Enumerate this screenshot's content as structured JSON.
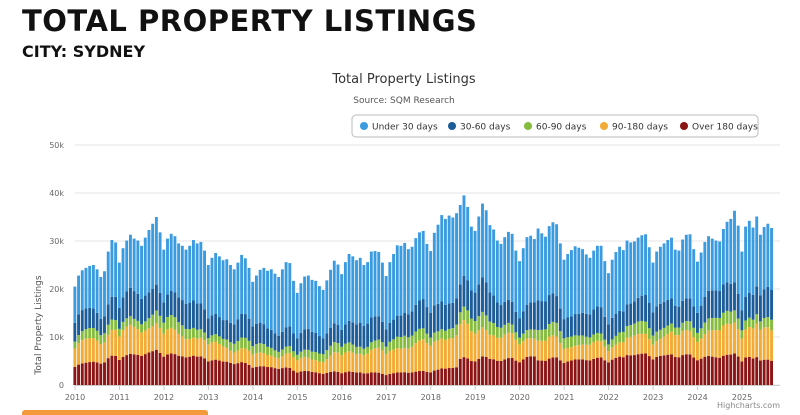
{
  "page": {
    "title": "TOTAL PROPERTY LISTINGS",
    "subtitle": "CITY: SYDNEY"
  },
  "chart_data": {
    "type": "bar",
    "stacked": true,
    "title": "Total Property Listings",
    "subtitle": "Source: SQM Research",
    "ylabel": "Total Property Listings",
    "xlabel": "",
    "ylim": [
      0,
      50000
    ],
    "y_ticks": [
      0,
      10000,
      20000,
      30000,
      40000,
      50000
    ],
    "y_tick_labels": [
      "0",
      "10k",
      "20k",
      "30k",
      "40k",
      "50k"
    ],
    "x_tick_labels": [
      "2010",
      "2011",
      "2012",
      "2013",
      "2014",
      "2015",
      "2016",
      "2017",
      "2018",
      "2019",
      "2020",
      "2021",
      "2022",
      "2023",
      "2024",
      "2025"
    ],
    "x_start_year": 2010,
    "x_end_year": 2025.75,
    "legend_position": "top-right",
    "grid": true,
    "credits": "Highcharts.com",
    "series": [
      {
        "name": "Under 30 days",
        "color": "#3b9be0"
      },
      {
        "name": "30-60 days",
        "color": "#1c5d99"
      },
      {
        "name": "60-90 days",
        "color": "#86bc3e"
      },
      {
        "name": "90-180 days",
        "color": "#f2ab35"
      },
      {
        "name": "Over 180 days",
        "color": "#8b1414"
      }
    ],
    "months_per_year": 12,
    "monthly_totals": [
      20500,
      22800,
      23900,
      24400,
      24800,
      25000,
      24100,
      22500,
      23700,
      27800,
      30200,
      29700,
      25500,
      28500,
      30100,
      31300,
      30500,
      30100,
      29000,
      30700,
      32300,
      33600,
      35000,
      31800,
      28200,
      30500,
      31500,
      31000,
      29500,
      29000,
      28200,
      29000,
      30200,
      29500,
      29800,
      28000,
      25000,
      26500,
      27500,
      26800,
      26000,
      26200,
      25000,
      24100,
      25500,
      27100,
      26400,
      24400,
      21500,
      22800,
      24000,
      24400,
      23800,
      24100,
      23200,
      22500,
      24100,
      25600,
      25400,
      21700,
      19200,
      21200,
      22600,
      22800,
      21900,
      21700,
      20600,
      19800,
      21800,
      24000,
      25900,
      25100,
      23100,
      25600,
      27300,
      26800,
      26000,
      26500,
      25000,
      25600,
      27800,
      27900,
      27700,
      25500,
      22700,
      25600,
      27300,
      29100,
      29000,
      29600,
      28300,
      28800,
      30600,
      31800,
      32100,
      29400,
      27900,
      31700,
      33400,
      35400,
      34600,
      35300,
      34900,
      35800,
      37500,
      39500,
      37100,
      33000,
      32100,
      35100,
      37800,
      36400,
      33300,
      32400,
      30100,
      29400,
      30800,
      31900,
      31500,
      28000,
      25800,
      28500,
      30800,
      31100,
      30400,
      32600,
      31600,
      30900,
      33100,
      33900,
      33500,
      29500,
      26100,
      27300,
      28100,
      28900,
      28600,
      28300,
      27200,
      26500,
      28000,
      29000,
      29000,
      25800,
      23300,
      26100,
      27700,
      28800,
      28100,
      30100,
      29700,
      29900,
      30700,
      31200,
      31400,
      28700,
      25500,
      27800,
      28800,
      29500,
      30200,
      30700,
      28200,
      28000,
      30300,
      31300,
      31400,
      28300,
      25700,
      27600,
      29800,
      31000,
      30500,
      30100,
      29900,
      32500,
      34000,
      34600,
      36300,
      33200,
      27800,
      33000,
      34200,
      32800,
      35100,
      31300,
      32900,
      33600,
      32700
    ],
    "share_pattern": "shares of each monthly total by age band follow the chart: Under 30 days ~45-55%, 30-60 days ~15-20%, 60-90 days ~5-9%, 90-180 days ~10-20%, Over 180 days ~12-25%"
  }
}
